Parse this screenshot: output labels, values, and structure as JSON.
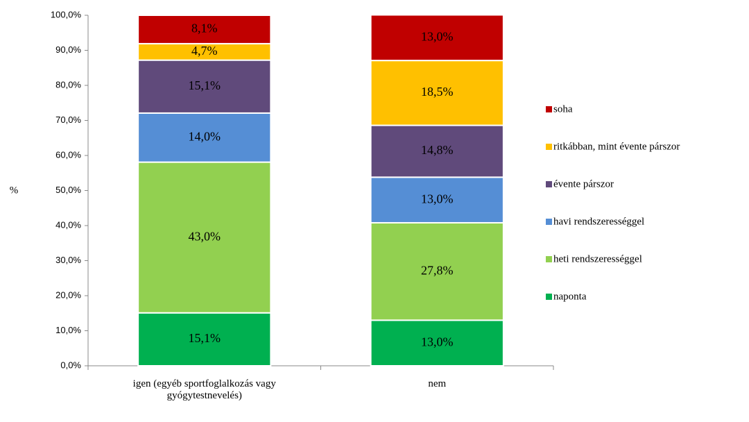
{
  "chart_data": {
    "type": "stacked_bar",
    "y_label": "%",
    "categories": [
      "igen (egyéb sportfoglalkozás vagy gyógytestnevelés)",
      "nem"
    ],
    "series": [
      {
        "name": "naponta",
        "color": "#00b050",
        "label_color": "#ffffff",
        "values": [
          15.1,
          13.0
        ],
        "value_labels": [
          "15,1%",
          "13,0%"
        ]
      },
      {
        "name": "heti rendszerességgel",
        "color": "#92d050",
        "label_color": "#000000",
        "values": [
          43.0,
          27.8
        ],
        "value_labels": [
          "43,0%",
          "27,8%"
        ]
      },
      {
        "name": "havi rendszerességgel",
        "color": "#558ed5",
        "label_color": "#000000",
        "values": [
          14.0,
          13.0
        ],
        "value_labels": [
          "14,0%",
          "13,0%"
        ]
      },
      {
        "name": "évente párszor",
        "color": "#604a7b",
        "label_color": "#ffffff",
        "values": [
          15.1,
          14.8
        ],
        "value_labels": [
          "15,1%",
          "14,8%"
        ]
      },
      {
        "name": "ritkábban, mint évente párszor",
        "color": "#ffc000",
        "label_color": "#000000",
        "values": [
          4.7,
          18.5
        ],
        "value_labels": [
          "4,7%",
          "18,5%"
        ]
      },
      {
        "name": "soha",
        "color": "#c00000",
        "label_color": "#ffffff",
        "values": [
          8.1,
          13.0
        ],
        "value_labels": [
          "8,1%",
          "13,0%"
        ]
      }
    ],
    "ylim": [
      0,
      100
    ],
    "yticks": [
      {
        "value": 0,
        "label": "0,0%"
      },
      {
        "value": 10,
        "label": "10,0%"
      },
      {
        "value": 20,
        "label": "20,0%"
      },
      {
        "value": 30,
        "label": "30,0%"
      },
      {
        "value": 40,
        "label": "40,0%"
      },
      {
        "value": 50,
        "label": "50,0%"
      },
      {
        "value": 60,
        "label": "60,0%"
      },
      {
        "value": 70,
        "label": "70,0%"
      },
      {
        "value": 80,
        "label": "80,0%"
      },
      {
        "value": 90,
        "label": "90,0%"
      },
      {
        "value": 100,
        "label": "100,0%"
      }
    ],
    "legend": "right"
  }
}
